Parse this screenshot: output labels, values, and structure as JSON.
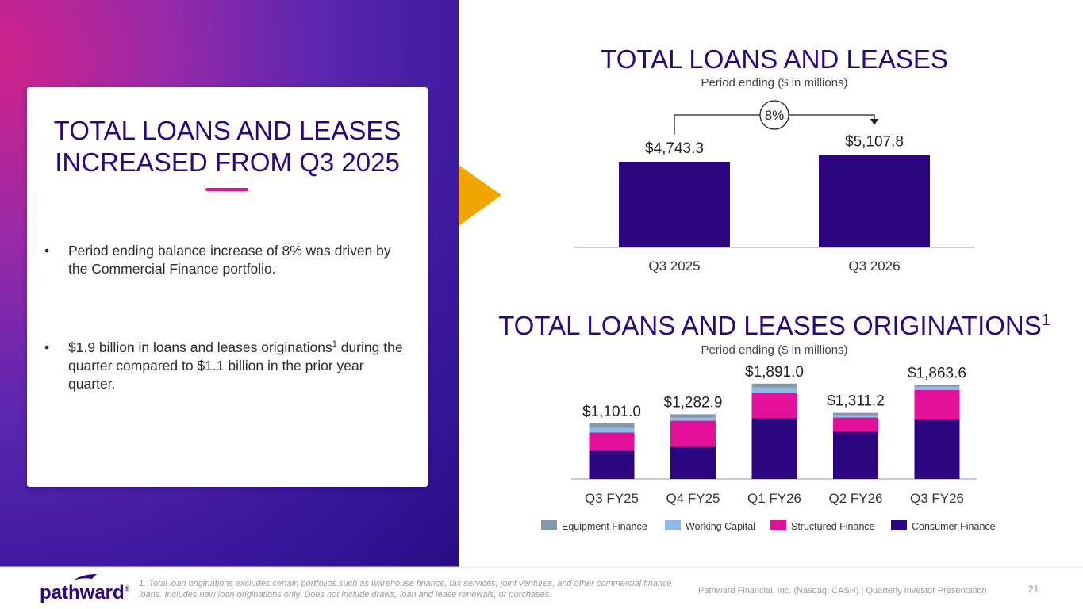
{
  "panel": {
    "title": "TOTAL LOANS AND LEASES INCREASED FROM Q3 2025",
    "bullets": [
      [
        "Period ending balance increase of 8% was driven by the Commercial Finance portfolio."
      ],
      [
        "$1.9 billion in loans and leases originations",
        "1",
        " during the quarter compared to $1.1 billion in the prior year quarter."
      ]
    ]
  },
  "chart_data": [
    {
      "type": "bar",
      "title": "TOTAL LOANS AND LEASES",
      "subtitle": "Period ending ($ in millions)",
      "categories": [
        "Q3 2025",
        "Q3 2026"
      ],
      "values": [
        4743.3,
        5107.8
      ],
      "value_labels": [
        "$4,743.3",
        "$5,107.8"
      ],
      "color": "#2c0680",
      "annotation": "8%"
    },
    {
      "type": "stacked_bar",
      "title": "TOTAL LOANS AND LEASES ORIGINATIONS",
      "title_sup": "1",
      "subtitle": "Period ending ($ in millions)",
      "categories": [
        "Q3 FY25",
        "Q4 FY25",
        "Q1 FY26",
        "Q2 FY26",
        "Q3 FY26"
      ],
      "series": [
        {
          "name": "Equipment Finance",
          "color": "#8497ab",
          "values": [
            86,
            66,
            79,
            46.2,
            35.6
          ]
        },
        {
          "name": "Working Capital",
          "color": "#8fb9e8",
          "values": [
            94,
            62,
            109,
            47,
            62
          ]
        },
        {
          "name": "Structured Finance",
          "color": "#e2109b",
          "values": [
            359,
            515,
            500,
            281,
            594
          ]
        },
        {
          "name": "Consumer Finance",
          "color": "#2c0680",
          "values": [
            562,
            639.9,
            1203,
            937,
            1172
          ]
        }
      ],
      "totals": [
        1101.0,
        1282.9,
        1891.0,
        1311.2,
        1863.6
      ],
      "total_labels": [
        "$1,101.0",
        "$1,282.9",
        "$1,891.0",
        "$1,311.2",
        "$1,863.6"
      ]
    }
  ],
  "footer": {
    "logo": "pathward",
    "logo_mark": "®",
    "footnote": "1. Total loan originations excludes certain portfolios such as warehouse finance, tax services, joint ventures, and other commercial finance loans. Includes new loan originations only. Does not include draws, loan and lease renewals, or purchases.",
    "company": "Pathward Financial, Inc. (Nasdaq: CASH) | Quarterly Investor Presentation",
    "page": "21"
  }
}
